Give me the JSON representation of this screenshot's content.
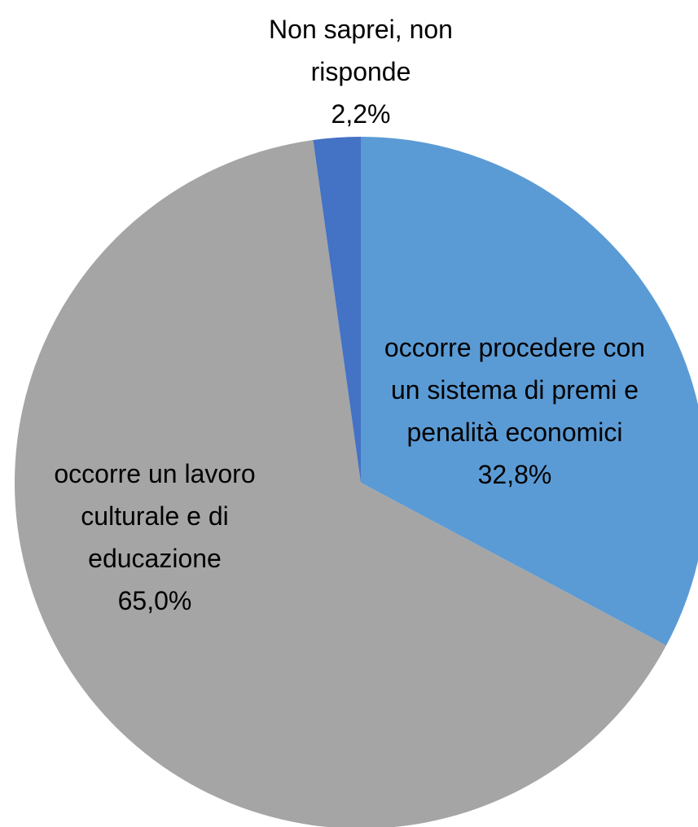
{
  "chart_data": {
    "type": "pie",
    "categories": [
      "occorre procedere con un sistema di premi e penalità economici",
      "occorre un lavoro culturale e di educazione",
      "Non saprei, non risponde"
    ],
    "values": [
      32.8,
      65.0,
      2.2
    ],
    "value_labels": [
      "32,8%",
      "65,0%",
      "2,2%"
    ],
    "colors": [
      "#5b9bd5",
      "#a5a5a5",
      "#4472c4"
    ]
  }
}
